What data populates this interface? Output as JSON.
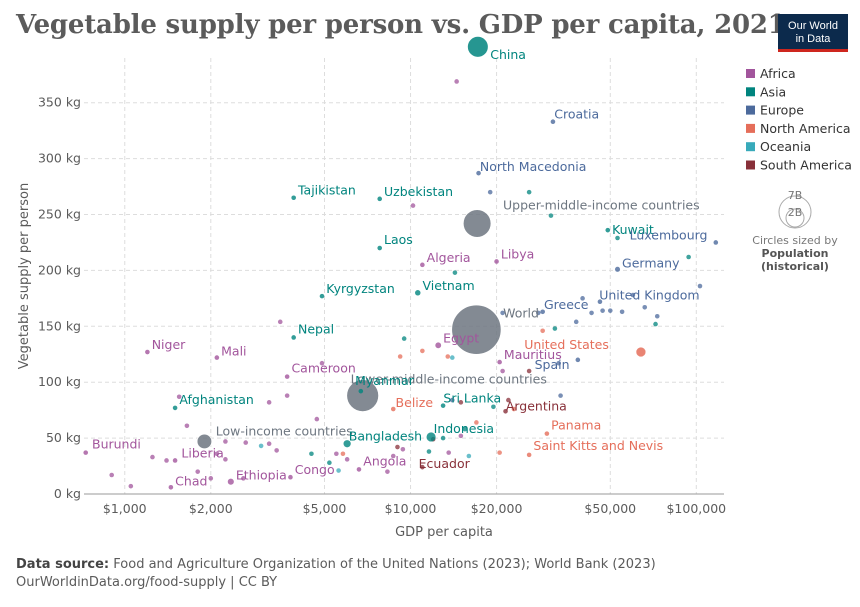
{
  "title": "Vegetable supply per person vs. GDP per capita, 2021",
  "logo": {
    "line1": "Our World",
    "line2": "in Data"
  },
  "footer": {
    "source_label": "Data source:",
    "source_text": "Food and Agriculture Organization of the United Nations (2023); World Bank (2023)",
    "url_text": "OurWorldinData.org/food-supply | CC BY"
  },
  "size_legend": {
    "big": "7B",
    "small": "2B",
    "line1": "Circles sized by",
    "line2": "Population",
    "line3": "(historical)"
  },
  "colors": {
    "Africa": "#a2559c",
    "Asia": "#00847e",
    "Europe": "#4c6a9c",
    "North America": "#e56e5a",
    "Oceania": "#38aaba",
    "South America": "#883039",
    "Aggregate": "#6d7680",
    "grid": "#dddddd"
  },
  "chart_data": {
    "type": "scatter",
    "title": "Vegetable supply per person vs. GDP per capita, 2021",
    "xlabel": "GDP per capita",
    "ylabel": "Vegetable supply per person",
    "xscale": "log",
    "xlim": [
      720,
      125000
    ],
    "ylim": [
      0,
      390
    ],
    "xticks": [
      1000,
      2000,
      5000,
      10000,
      20000,
      50000,
      100000
    ],
    "xtick_labels": [
      "$1,000",
      "$2,000",
      "$5,000",
      "$10,000",
      "$20,000",
      "$50,000",
      "$100,000"
    ],
    "yticks": [
      0,
      50,
      100,
      150,
      200,
      250,
      300,
      350
    ],
    "ytick_labels": [
      "0 kg",
      "50 kg",
      "100 kg",
      "150 kg",
      "200 kg",
      "250 kg",
      "300 kg",
      "350 kg"
    ],
    "legend_position": "right",
    "legend": [
      "Africa",
      "Asia",
      "Europe",
      "North America",
      "Oceania",
      "South America"
    ],
    "labeled_points": [
      {
        "name": "China",
        "region": "Asia",
        "gdp": 17200,
        "kg": 400,
        "pop": 1.4
      },
      {
        "name": "Croatia",
        "region": "Europe",
        "gdp": 31500,
        "kg": 333,
        "pop": 0.004
      },
      {
        "name": "North Macedonia",
        "region": "Europe",
        "gdp": 17300,
        "kg": 287,
        "pop": 0.002
      },
      {
        "name": "Tajikistan",
        "region": "Asia",
        "gdp": 3900,
        "kg": 265,
        "pop": 0.01
      },
      {
        "name": "Uzbekistan",
        "region": "Asia",
        "gdp": 7800,
        "kg": 264,
        "pop": 0.034
      },
      {
        "name": "Upper-middle-income countries",
        "region": "Aggregate",
        "gdp": 17100,
        "kg": 242,
        "pop": 2.5
      },
      {
        "name": "Kuwait",
        "region": "Asia",
        "gdp": 49000,
        "kg": 236,
        "pop": 0.004
      },
      {
        "name": "Luxembourg",
        "region": "Europe",
        "gdp": 117000,
        "kg": 225,
        "pop": 0.0006
      },
      {
        "name": "Laos",
        "region": "Asia",
        "gdp": 7800,
        "kg": 220,
        "pop": 0.007
      },
      {
        "name": "Algeria",
        "region": "Africa",
        "gdp": 11000,
        "kg": 205,
        "pop": 0.045
      },
      {
        "name": "Libya",
        "region": "Africa",
        "gdp": 20000,
        "kg": 208,
        "pop": 0.007
      },
      {
        "name": "Germany",
        "region": "Europe",
        "gdp": 53000,
        "kg": 201,
        "pop": 0.083
      },
      {
        "name": "Kyrgyzstan",
        "region": "Asia",
        "gdp": 4900,
        "kg": 177,
        "pop": 0.007
      },
      {
        "name": "Vietnam",
        "region": "Asia",
        "gdp": 10600,
        "kg": 180,
        "pop": 0.098
      },
      {
        "name": "United Kingdom",
        "region": "Europe",
        "gdp": 46000,
        "kg": 172,
        "pop": 0.067
      },
      {
        "name": "World",
        "region": "Aggregate",
        "gdp": 17000,
        "kg": 147,
        "pop": 7.9
      },
      {
        "name": "Greece",
        "region": "Europe",
        "gdp": 29000,
        "kg": 163,
        "pop": 0.01
      },
      {
        "name": "Nepal",
        "region": "Asia",
        "gdp": 3900,
        "kg": 140,
        "pop": 0.03
      },
      {
        "name": "Niger",
        "region": "Africa",
        "gdp": 1200,
        "kg": 127,
        "pop": 0.025
      },
      {
        "name": "Mali",
        "region": "Africa",
        "gdp": 2100,
        "kg": 122,
        "pop": 0.022
      },
      {
        "name": "Egypt",
        "region": "Africa",
        "gdp": 12500,
        "kg": 133,
        "pop": 0.11
      },
      {
        "name": "United States",
        "region": "North America",
        "gdp": 64000,
        "kg": 127,
        "pop": 0.33
      },
      {
        "name": "Mauritius",
        "region": "Africa",
        "gdp": 20500,
        "kg": 118,
        "pop": 0.0013
      },
      {
        "name": "Spain",
        "region": "Europe",
        "gdp": 38500,
        "kg": 120,
        "pop": 0.047
      },
      {
        "name": "Cameroon",
        "region": "Africa",
        "gdp": 3700,
        "kg": 105,
        "pop": 0.027
      },
      {
        "name": "Lower-middle-income countries",
        "region": "Aggregate",
        "gdp": 6800,
        "kg": 88,
        "pop": 3.3
      },
      {
        "name": "Myanmar",
        "region": "Asia",
        "gdp": 6700,
        "kg": 92,
        "pop": 0.054
      },
      {
        "name": "Afghanistan",
        "region": "Asia",
        "gdp": 1500,
        "kg": 77,
        "pop": 0.04
      },
      {
        "name": "Belize",
        "region": "North America",
        "gdp": 8700,
        "kg": 76,
        "pop": 0.0004
      },
      {
        "name": "Sri Lanka",
        "region": "Asia",
        "gdp": 13000,
        "kg": 79,
        "pop": 0.022
      },
      {
        "name": "Argentina",
        "region": "South America",
        "gdp": 21500,
        "kg": 74,
        "pop": 0.045
      },
      {
        "name": "Panama",
        "region": "North America",
        "gdp": 30000,
        "kg": 54,
        "pop": 0.0044
      },
      {
        "name": "Indonesia",
        "region": "Asia",
        "gdp": 11800,
        "kg": 51,
        "pop": 0.27
      },
      {
        "name": "Low-income countries",
        "region": "Aggregate",
        "gdp": 1900,
        "kg": 47,
        "pop": 0.7
      },
      {
        "name": "Bangladesh",
        "region": "Asia",
        "gdp": 6000,
        "kg": 45,
        "pop": 0.17
      },
      {
        "name": "Burundi",
        "region": "Africa",
        "gdp": 730,
        "kg": 37,
        "pop": 0.012
      },
      {
        "name": "Liberia",
        "region": "Africa",
        "gdp": 1500,
        "kg": 30,
        "pop": 0.005
      },
      {
        "name": "Saint Kitts and Nevis",
        "region": "North America",
        "gdp": 26000,
        "kg": 35,
        "pop": 5e-05
      },
      {
        "name": "Angola",
        "region": "Africa",
        "gdp": 6600,
        "kg": 22,
        "pop": 0.034
      },
      {
        "name": "Ecuador",
        "region": "South America",
        "gdp": 11000,
        "kg": 24,
        "pop": 0.018
      },
      {
        "name": "Congo",
        "region": "Africa",
        "gdp": 3800,
        "kg": 15,
        "pop": 0.0056
      },
      {
        "name": "Ethiopia",
        "region": "Africa",
        "gdp": 2350,
        "kg": 11,
        "pop": 0.12
      },
      {
        "name": "Chad",
        "region": "Africa",
        "gdp": 1450,
        "kg": 6,
        "pop": 0.017
      }
    ],
    "other_points": [
      {
        "region": "Africa",
        "gdp": 900,
        "kg": 17
      },
      {
        "region": "Africa",
        "gdp": 1050,
        "kg": 7
      },
      {
        "region": "Africa",
        "gdp": 1250,
        "kg": 33
      },
      {
        "region": "Africa",
        "gdp": 1400,
        "kg": 30
      },
      {
        "region": "Africa",
        "gdp": 1550,
        "kg": 87
      },
      {
        "region": "Africa",
        "gdp": 1650,
        "kg": 61
      },
      {
        "region": "Africa",
        "gdp": 1800,
        "kg": 20
      },
      {
        "region": "Africa",
        "gdp": 2000,
        "kg": 14
      },
      {
        "region": "Africa",
        "gdp": 2100,
        "kg": 36
      },
      {
        "region": "Africa",
        "gdp": 2250,
        "kg": 31
      },
      {
        "region": "Africa",
        "gdp": 2250,
        "kg": 47
      },
      {
        "region": "Africa",
        "gdp": 2600,
        "kg": 14
      },
      {
        "region": "Africa",
        "gdp": 2650,
        "kg": 46
      },
      {
        "region": "Africa",
        "gdp": 3200,
        "kg": 82
      },
      {
        "region": "Africa",
        "gdp": 3200,
        "kg": 45
      },
      {
        "region": "Africa",
        "gdp": 3400,
        "kg": 39
      },
      {
        "region": "Africa",
        "gdp": 3500,
        "kg": 154
      },
      {
        "region": "Africa",
        "gdp": 3700,
        "kg": 88
      },
      {
        "region": "Africa",
        "gdp": 4700,
        "kg": 67
      },
      {
        "region": "Africa",
        "gdp": 4900,
        "kg": 117
      },
      {
        "region": "Africa",
        "gdp": 5500,
        "kg": 36
      },
      {
        "region": "Africa",
        "gdp": 6000,
        "kg": 31
      },
      {
        "region": "Africa",
        "gdp": 8300,
        "kg": 20
      },
      {
        "region": "Africa",
        "gdp": 8700,
        "kg": 34
      },
      {
        "region": "Africa",
        "gdp": 9400,
        "kg": 40
      },
      {
        "region": "Africa",
        "gdp": 10200,
        "kg": 258
      },
      {
        "region": "Africa",
        "gdp": 13600,
        "kg": 37
      },
      {
        "region": "Africa",
        "gdp": 14500,
        "kg": 369
      },
      {
        "region": "Africa",
        "gdp": 15000,
        "kg": 52
      },
      {
        "region": "Africa",
        "gdp": 21000,
        "kg": 110
      },
      {
        "region": "Asia",
        "gdp": 4500,
        "kg": 36
      },
      {
        "region": "Asia",
        "gdp": 5200,
        "kg": 28
      },
      {
        "region": "Asia",
        "gdp": 9500,
        "kg": 139
      },
      {
        "region": "Asia",
        "gdp": 11600,
        "kg": 38
      },
      {
        "region": "Asia",
        "gdp": 14300,
        "kg": 198
      },
      {
        "region": "Asia",
        "gdp": 15500,
        "kg": 58
      },
      {
        "region": "Asia",
        "gdp": 19500,
        "kg": 78
      },
      {
        "region": "Asia",
        "gdp": 26000,
        "kg": 270
      },
      {
        "region": "Asia",
        "gdp": 31000,
        "kg": 249
      },
      {
        "region": "Asia",
        "gdp": 32000,
        "kg": 148
      },
      {
        "region": "Asia",
        "gdp": 53000,
        "kg": 229
      },
      {
        "region": "Asia",
        "gdp": 72000,
        "kg": 152
      },
      {
        "region": "Asia",
        "gdp": 94000,
        "kg": 212
      },
      {
        "region": "Asia",
        "gdp": 13000,
        "kg": 50
      },
      {
        "region": "Europe",
        "gdp": 14000,
        "kg": 84
      },
      {
        "region": "Europe",
        "gdp": 19000,
        "kg": 270
      },
      {
        "region": "Europe",
        "gdp": 21000,
        "kg": 162
      },
      {
        "region": "Europe",
        "gdp": 28000,
        "kg": 162
      },
      {
        "region": "Europe",
        "gdp": 33000,
        "kg": 117
      },
      {
        "region": "Europe",
        "gdp": 33500,
        "kg": 88
      },
      {
        "region": "Europe",
        "gdp": 38000,
        "kg": 154
      },
      {
        "region": "Europe",
        "gdp": 43000,
        "kg": 162
      },
      {
        "region": "Europe",
        "gdp": 47000,
        "kg": 164
      },
      {
        "region": "Europe",
        "gdp": 50000,
        "kg": 164
      },
      {
        "region": "Europe",
        "gdp": 55000,
        "kg": 163
      },
      {
        "region": "Europe",
        "gdp": 60000,
        "kg": 178
      },
      {
        "region": "Europe",
        "gdp": 66000,
        "kg": 167
      },
      {
        "region": "Europe",
        "gdp": 73000,
        "kg": 159
      },
      {
        "region": "Europe",
        "gdp": 103000,
        "kg": 186
      },
      {
        "region": "Europe",
        "gdp": 40000,
        "kg": 175
      },
      {
        "region": "North America",
        "gdp": 9200,
        "kg": 123
      },
      {
        "region": "North America",
        "gdp": 11000,
        "kg": 128
      },
      {
        "region": "North America",
        "gdp": 13500,
        "kg": 123
      },
      {
        "region": "North America",
        "gdp": 17000,
        "kg": 64
      },
      {
        "region": "North America",
        "gdp": 20500,
        "kg": 37
      },
      {
        "region": "North America",
        "gdp": 23000,
        "kg": 76
      },
      {
        "region": "North America",
        "gdp": 29000,
        "kg": 146
      },
      {
        "region": "North America",
        "gdp": 5800,
        "kg": 36
      },
      {
        "region": "Oceania",
        "gdp": 3000,
        "kg": 43
      },
      {
        "region": "Oceania",
        "gdp": 5600,
        "kg": 21
      },
      {
        "region": "Oceania",
        "gdp": 14000,
        "kg": 122
      },
      {
        "region": "Oceania",
        "gdp": 16000,
        "kg": 34
      },
      {
        "region": "South America",
        "gdp": 9000,
        "kg": 42
      },
      {
        "region": "South America",
        "gdp": 12000,
        "kg": 49
      },
      {
        "region": "South America",
        "gdp": 15000,
        "kg": 82
      },
      {
        "region": "South America",
        "gdp": 22000,
        "kg": 84
      },
      {
        "region": "South America",
        "gdp": 26000,
        "kg": 110
      }
    ]
  }
}
